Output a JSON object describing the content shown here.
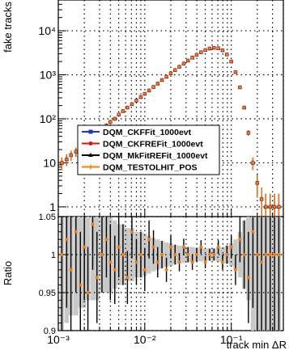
{
  "chart_data": [
    {
      "type": "scatter",
      "panel": "main",
      "xlabel": "track min  ΔR",
      "ylabel": "fake tracks",
      "x_scale": "log",
      "y_scale": "log",
      "xlim": [
        0.001,
        0.4
      ],
      "ylim": [
        0.6,
        50000
      ],
      "grid": true,
      "y_ticks": [
        {
          "value": 1,
          "label": "1"
        },
        {
          "value": 10,
          "label": "10"
        },
        {
          "value": 100,
          "label": "10²"
        },
        {
          "value": 1000,
          "label": "10³"
        },
        {
          "value": 10000,
          "label": "10⁴"
        }
      ],
      "legend": {
        "placement": "center-left",
        "entries": [
          {
            "label": "DQM_CKFFit_1000evt",
            "color": "#1f33cc",
            "marker": "square"
          },
          {
            "label": "DQM_CKFREFit_1000evt",
            "color": "#e01010",
            "marker": "circle"
          },
          {
            "label": "DQM_MkFitREFit_1000evt",
            "color": "#000000",
            "marker": "triangle"
          },
          {
            "label": "DQM_TESTOLHIT_POS",
            "color": "#ff7a00",
            "marker": "cross"
          }
        ]
      },
      "x": [
        0.0011,
        0.00125,
        0.0014,
        0.0016,
        0.0018,
        0.002,
        0.0022,
        0.0025,
        0.0028,
        0.0032,
        0.0036,
        0.004,
        0.0045,
        0.005,
        0.0056,
        0.0063,
        0.0071,
        0.008,
        0.009,
        0.01,
        0.0112,
        0.0126,
        0.0141,
        0.0158,
        0.0178,
        0.02,
        0.0224,
        0.0251,
        0.0282,
        0.0316,
        0.0355,
        0.0398,
        0.0447,
        0.0501,
        0.0562,
        0.0631,
        0.0708,
        0.0794,
        0.0891,
        0.1,
        0.112,
        0.126,
        0.141,
        0.158,
        0.178,
        0.2,
        0.224,
        0.251,
        0.282,
        0.316,
        0.355
      ],
      "series": [
        {
          "name": "DQM_CKFFit_1000evt",
          "color": "#1f33cc",
          "values": [
            10,
            12,
            15,
            18,
            22,
            28,
            35,
            40,
            48,
            56,
            70,
            85,
            100,
            125,
            150,
            180,
            215,
            260,
            310,
            370,
            440,
            530,
            630,
            760,
            900,
            1080,
            1280,
            1520,
            1800,
            2100,
            2450,
            2850,
            3250,
            3650,
            3950,
            4100,
            4000,
            3600,
            2900,
            2000,
            1150,
            520,
            180,
            48,
            10,
            3.5,
            1.5,
            1,
            1,
            1,
            1
          ]
        },
        {
          "name": "DQM_CKFREFit_1000evt",
          "color": "#e01010",
          "values": [
            10,
            12,
            15,
            18,
            22,
            28,
            35,
            40,
            48,
            56,
            70,
            85,
            100,
            125,
            150,
            180,
            215,
            260,
            310,
            370,
            440,
            530,
            630,
            760,
            900,
            1080,
            1280,
            1520,
            1800,
            2100,
            2450,
            2850,
            3250,
            3650,
            3950,
            4100,
            4000,
            3600,
            2900,
            2000,
            1150,
            520,
            180,
            48,
            10,
            3.5,
            1.5,
            1,
            1,
            1,
            1
          ]
        },
        {
          "name": "DQM_MkFitREFit_1000evt",
          "color": "#000000",
          "values": [
            10,
            12,
            15,
            18,
            22,
            28,
            35,
            40,
            48,
            56,
            70,
            85,
            100,
            125,
            150,
            180,
            215,
            260,
            310,
            370,
            440,
            530,
            630,
            760,
            900,
            1080,
            1280,
            1520,
            1800,
            2100,
            2450,
            2850,
            3250,
            3650,
            3950,
            4100,
            4000,
            3600,
            2900,
            2000,
            1150,
            520,
            180,
            48,
            10,
            3.5,
            1.5,
            1,
            1,
            1,
            1
          ]
        },
        {
          "name": "DQM_TESTOLHIT_POS",
          "color": "#ff7a00",
          "values": [
            10,
            12,
            15,
            18,
            22,
            28,
            35,
            40,
            48,
            56,
            70,
            85,
            100,
            125,
            150,
            180,
            215,
            260,
            310,
            370,
            440,
            530,
            630,
            760,
            900,
            1080,
            1280,
            1520,
            1800,
            2100,
            2450,
            2850,
            3250,
            3650,
            3950,
            4100,
            4000,
            3600,
            2900,
            2000,
            1150,
            520,
            180,
            48,
            10,
            3.5,
            1.5,
            1,
            1,
            1,
            1
          ]
        }
      ]
    },
    {
      "type": "scatter",
      "panel": "ratio",
      "xlabel": "track min  ΔR",
      "ylabel": "Ratio",
      "x_scale": "log",
      "xlim": [
        0.001,
        0.4
      ],
      "ylim": [
        0.9,
        1.05
      ],
      "grid": true,
      "y_ticks": [
        {
          "value": 0.9,
          "label": "0.9"
        },
        {
          "value": 0.95,
          "label": "0.95"
        },
        {
          "value": 1.0,
          "label": "1"
        },
        {
          "value": 1.05,
          "label": "1.05"
        }
      ],
      "x_ticks": [
        {
          "value": 0.001,
          "label": "10⁻³"
        },
        {
          "value": 0.01,
          "label": "10⁻²"
        },
        {
          "value": 0.1,
          "label": "10⁻¹"
        }
      ],
      "x": [
        0.0011,
        0.00125,
        0.0014,
        0.0016,
        0.0018,
        0.002,
        0.0022,
        0.0025,
        0.0028,
        0.0032,
        0.0036,
        0.004,
        0.0045,
        0.005,
        0.0056,
        0.0063,
        0.0071,
        0.008,
        0.009,
        0.01,
        0.0112,
        0.0126,
        0.0141,
        0.0158,
        0.0178,
        0.02,
        0.0224,
        0.0251,
        0.0282,
        0.0316,
        0.0355,
        0.0398,
        0.0447,
        0.0501,
        0.0562,
        0.0631,
        0.0708,
        0.0794,
        0.0891,
        0.1,
        0.112,
        0.126,
        0.141,
        0.158,
        0.178,
        0.2,
        0.224,
        0.251,
        0.282,
        0.316,
        0.355
      ],
      "values": [
        1.0,
        1.02,
        0.98,
        1.03,
        0.96,
        1.01,
        0.95,
        1.04,
        0.97,
        1.0,
        1.02,
        0.99,
        0.98,
        1.01,
        1.0,
        0.97,
        1.03,
        0.99,
        1.0,
        0.98,
        1.02,
        1.01,
        0.99,
        1.0,
        0.98,
        1.01,
        1.0,
        0.99,
        1.01,
        1.0,
        0.99,
        1.0,
        1.01,
        0.99,
        1.0,
        1.0,
        1.01,
        0.99,
        1.0,
        1.01,
        0.98,
        1.02,
        1.0,
        0.97,
        1.03,
        1.0,
        0.99,
        1.0,
        1.0,
        1.0,
        1.0
      ],
      "errors": [
        0.1,
        0.09,
        0.08,
        0.08,
        0.07,
        0.07,
        0.06,
        0.06,
        0.06,
        0.05,
        0.05,
        0.05,
        0.045,
        0.04,
        0.04,
        0.035,
        0.035,
        0.03,
        0.03,
        0.028,
        0.025,
        0.022,
        0.02,
        0.018,
        0.016,
        0.015,
        0.013,
        0.012,
        0.011,
        0.01,
        0.01,
        0.009,
        0.009,
        0.008,
        0.008,
        0.008,
        0.009,
        0.01,
        0.012,
        0.015,
        0.02,
        0.03,
        0.045,
        0.06,
        0.1,
        0.1,
        0.1,
        0.1,
        0.1,
        0.1,
        0.1
      ]
    }
  ]
}
